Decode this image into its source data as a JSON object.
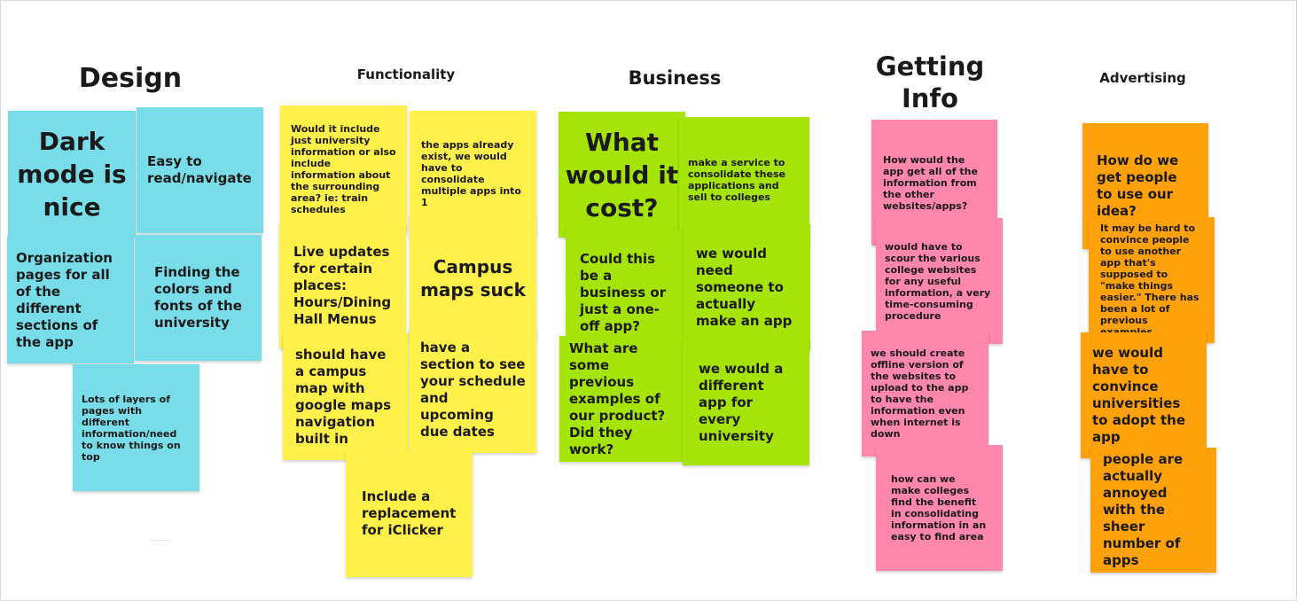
{
  "columns": {
    "design": {
      "heading": "Design",
      "notes": {
        "dark_mode": "Dark mode is nice",
        "easy_read": "Easy to read/navigate",
        "organization": "Organization pages for all of the different sections of the app",
        "colors_fonts": "Finding the colors and fonts of the university",
        "layers": "Lots of layers of pages with different information/need to know things on top"
      }
    },
    "functionality": {
      "heading": "Functionality",
      "notes": {
        "university_info": "Would it include just university information or also include information about the surrounding area? ie: train schedules",
        "apps_exist": "the apps already exist, we would have to consolidate multiple apps into 1",
        "live_updates": "Live updates for certain places: Hours/Dining Hall Menus",
        "campus_maps": "Campus maps suck",
        "campus_map_google": "should have a campus map with google maps navigation built in",
        "schedule_section": "have a section to see your schedule and upcoming due dates",
        "iclicker": "Include a replacement for iClicker"
      }
    },
    "business": {
      "heading": "Business",
      "notes": {
        "cost": "What would it cost?",
        "service": "make a service to consolidate these applications and sell to colleges",
        "business_or_oneoff": "Could this be a business or just a one-off app?",
        "need_someone": "we would need someone to actually make an app",
        "previous_examples": "What are some previous examples of our product? Did they work?",
        "different_app": "we would a different app for every university"
      }
    },
    "getting_info": {
      "heading_line1": "Getting",
      "heading_line2": "Info",
      "notes": {
        "how_get_info": "How would the app get all of the information from the other websites/apps?",
        "scour": "would have to scour the various college websites for any useful information, a very time-consuming procedure",
        "offline": "we should create offline version of the websites to upload to the app to have the information even when internet is down",
        "benefit": "how can we make colleges find the benefit in consolidating information in an easy to find area"
      }
    },
    "advertising": {
      "heading": "Advertising",
      "notes": {
        "get_people": "How do we get people to use our idea?",
        "hard_convince": "It may be hard to convince people to use another app that's supposed to \"make things easier.\" There has been a lot of previous examples.",
        "convince_universities": "we would have to convince universities to adopt the app",
        "annoyed": "people are actually annoyed with the sheer number of apps"
      }
    }
  },
  "colors": {
    "design": "#79dde9",
    "functionality": "#fff04a",
    "business": "#a6e306",
    "getting_info": "#ff86ac",
    "advertising": "#ffa10a"
  }
}
